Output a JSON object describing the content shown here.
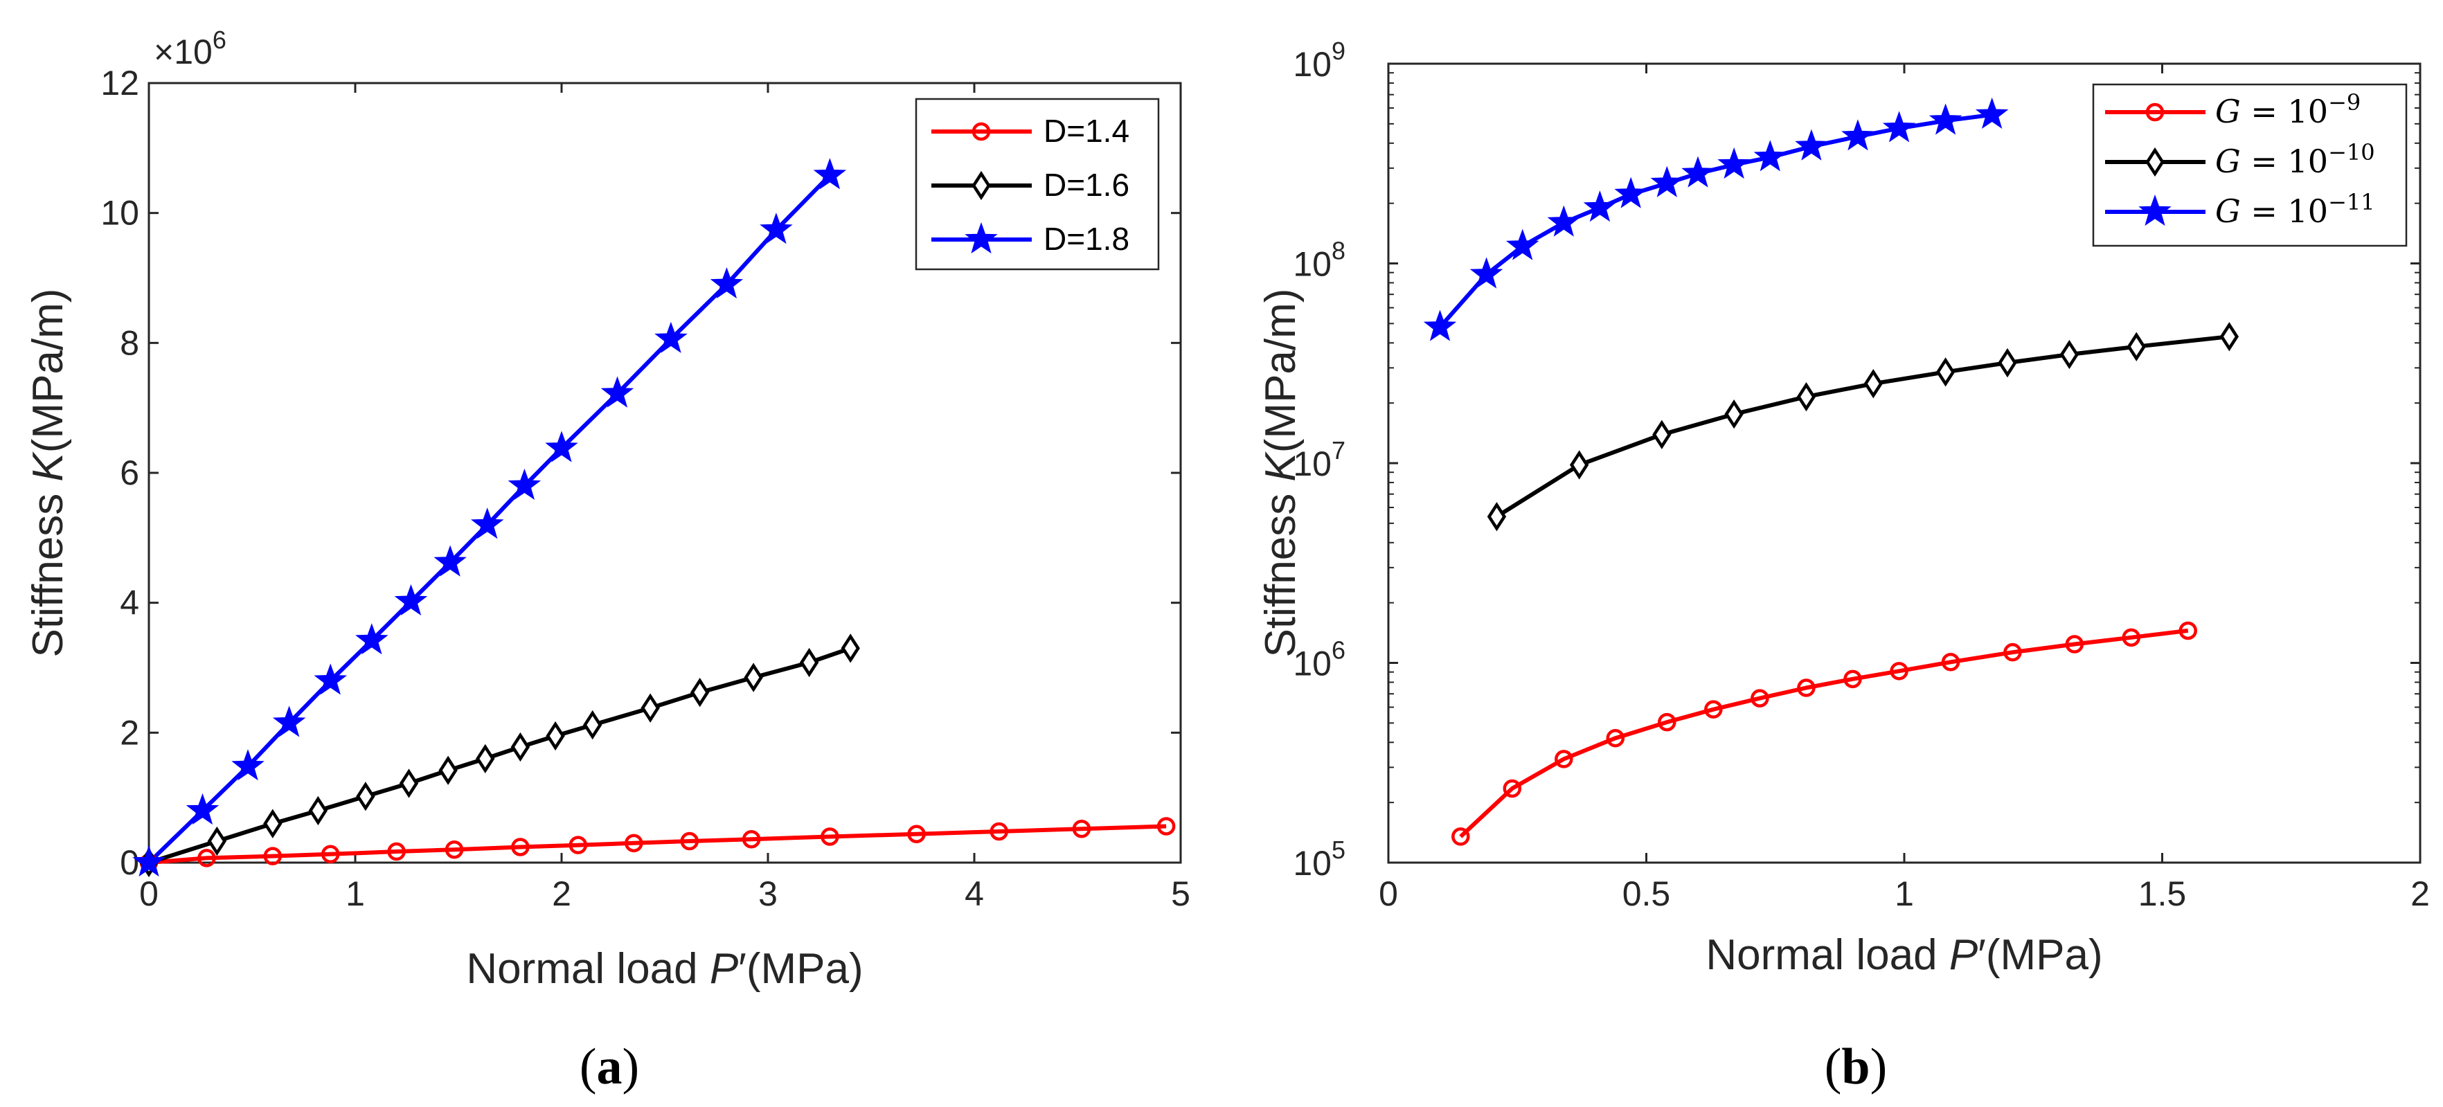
{
  "chart_data": [
    {
      "id": "a",
      "type": "line",
      "caption_paren_open": "(",
      "caption_letter": "a",
      "caption_paren_close": ")",
      "xlabel_pre": "Normal load ",
      "xlabel_var": "P",
      "xlabel_prime": "′",
      "xlabel_unit": "(MPa)",
      "ylabel_pre": "Stiffness ",
      "ylabel_var": "K",
      "ylabel_unit": "(MPa/m)",
      "exponent_times": "×10",
      "exponent_power": "6",
      "xlim": [
        0,
        5
      ],
      "ylim": [
        0,
        12
      ],
      "xticks": [
        "0",
        "1",
        "2",
        "3",
        "4",
        "5"
      ],
      "yticks": [
        "0",
        "2",
        "4",
        "6",
        "8",
        "10",
        "12"
      ],
      "series": [
        {
          "name": "D=1.4",
          "color": "#ff0000",
          "marker": "circle",
          "x": [
            0,
            0.28,
            0.6,
            0.88,
            1.2,
            1.48,
            1.8,
            2.08,
            2.35,
            2.62,
            2.92,
            3.3,
            3.72,
            4.12,
            4.52,
            4.93
          ],
          "y": [
            0,
            0.07,
            0.1,
            0.13,
            0.17,
            0.2,
            0.24,
            0.27,
            0.3,
            0.33,
            0.36,
            0.4,
            0.44,
            0.48,
            0.52,
            0.56
          ]
        },
        {
          "name": "D=1.6",
          "color": "#000000",
          "marker": "diamond",
          "x": [
            0,
            0.33,
            0.6,
            0.82,
            1.05,
            1.26,
            1.45,
            1.63,
            1.8,
            1.97,
            2.15,
            2.43,
            2.67,
            2.93,
            3.2,
            3.4
          ],
          "y": [
            0,
            0.33,
            0.6,
            0.8,
            1.02,
            1.22,
            1.42,
            1.6,
            1.78,
            1.95,
            2.12,
            2.38,
            2.62,
            2.85,
            3.08,
            3.3
          ]
        },
        {
          "name": "D=1.8",
          "color": "#0000ff",
          "marker": "star",
          "x": [
            0,
            0.26,
            0.48,
            0.68,
            0.88,
            1.08,
            1.27,
            1.46,
            1.64,
            1.82,
            2.0,
            2.27,
            2.53,
            2.8,
            3.04,
            3.3
          ],
          "y": [
            0,
            0.8,
            1.48,
            2.15,
            2.8,
            3.42,
            4.02,
            4.62,
            5.2,
            5.8,
            6.38,
            7.22,
            8.06,
            8.9,
            9.74,
            10.58
          ]
        }
      ]
    },
    {
      "id": "b",
      "type": "line",
      "caption_paren_open": "(",
      "caption_letter": "b",
      "caption_paren_close": ")",
      "xlabel_pre": "Normal load ",
      "xlabel_var": "P",
      "xlabel_prime": "′",
      "xlabel_unit": "(MPa)",
      "ylabel_pre": "Stiffness ",
      "ylabel_var": "K",
      "ylabel_unit": "(MPa/m)",
      "yscale": "log",
      "xlim": [
        0,
        2
      ],
      "ylim": [
        100000,
        1000000000
      ],
      "xticks": [
        "0",
        "0.5",
        "1",
        "1.5",
        "2"
      ],
      "yticks_base": "10",
      "yticks_exp": [
        "5",
        "6",
        "7",
        "8",
        "9"
      ],
      "series": [
        {
          "name_var": "G",
          "name_eq": " = 10",
          "name_exp": "−9",
          "color": "#ff0000",
          "marker": "circle",
          "x": [
            0.14,
            0.24,
            0.34,
            0.44,
            0.54,
            0.63,
            0.72,
            0.81,
            0.9,
            0.99,
            1.09,
            1.21,
            1.33,
            1.44,
            1.55
          ],
          "y": [
            135000,
            235000,
            330000,
            420000,
            505000,
            585000,
            665000,
            750000,
            830000,
            910000,
            1010000,
            1130000,
            1240000,
            1340000,
            1450000
          ]
        },
        {
          "name_var": "G",
          "name_eq": " = 10",
          "name_exp": "−10",
          "color": "#000000",
          "marker": "diamond",
          "x": [
            0.21,
            0.37,
            0.53,
            0.67,
            0.81,
            0.94,
            1.08,
            1.2,
            1.32,
            1.45,
            1.63
          ],
          "y": [
            5400000,
            9800000,
            13900000,
            17600000,
            21500000,
            25000000,
            28600000,
            31800000,
            35000000,
            38300000,
            43000000
          ]
        },
        {
          "name_var": "G",
          "name_eq": " = 10",
          "name_exp": "−11",
          "color": "#0000ff",
          "marker": "star",
          "x": [
            0.1,
            0.19,
            0.26,
            0.34,
            0.41,
            0.47,
            0.54,
            0.6,
            0.67,
            0.74,
            0.82,
            0.91,
            0.99,
            1.08,
            1.17
          ],
          "y": [
            48000000,
            88000000,
            122000000,
            160000000,
            190000000,
            222000000,
            252000000,
            282000000,
            312000000,
            340000000,
            385000000,
            432000000,
            475000000,
            518000000,
            555000000
          ]
        }
      ]
    }
  ]
}
